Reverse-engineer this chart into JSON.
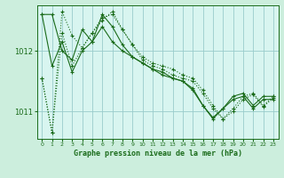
{
  "title": "Graphe pression niveau de la mer (hPa)",
  "background_color": "#cceedd",
  "plot_bg": "#d8f5f0",
  "grid_color": "#99cccc",
  "line_color": "#1a6b1a",
  "xlim": [
    -0.5,
    23.5
  ],
  "ylim": [
    1010.55,
    1012.75
  ],
  "yticks": [
    1011,
    1012
  ],
  "xticks": [
    0,
    1,
    2,
    3,
    4,
    5,
    6,
    7,
    8,
    9,
    10,
    11,
    12,
    13,
    14,
    15,
    16,
    17,
    18,
    19,
    20,
    21,
    22,
    23
  ],
  "series": [
    [
      1011.55,
      1010.65,
      1012.65,
      1012.25,
      1012.05,
      1012.3,
      1012.55,
      1012.6,
      1012.35,
      1012.1,
      1011.9,
      1011.8,
      1011.75,
      1011.7,
      1011.6,
      1011.55,
      1011.35,
      1011.1,
      1010.88,
      1011.05,
      1011.25,
      1011.3,
      1011.1,
      1011.25
    ],
    [
      1012.6,
      1012.6,
      1012.0,
      1011.85,
      1012.35,
      1012.15,
      1012.6,
      1012.4,
      1012.1,
      1011.9,
      1011.8,
      1011.7,
      1011.6,
      1011.55,
      1011.5,
      1011.38,
      1011.1,
      1010.9,
      1011.05,
      1011.25,
      1011.3,
      1011.1,
      1011.25,
      1011.25
    ],
    [
      1012.6,
      1011.75,
      1012.15,
      1011.65,
      1012.0,
      1012.15,
      1012.4,
      1012.15,
      1012.0,
      1011.9,
      1011.8,
      1011.7,
      1011.65,
      1011.55,
      1011.5,
      1011.35,
      1011.1,
      1010.88,
      1011.05,
      1011.2,
      1011.25,
      1011.05,
      1011.2,
      1011.2
    ],
    [
      1011.55,
      1010.65,
      1012.3,
      1011.75,
      1012.05,
      1012.3,
      1012.5,
      1012.65,
      1012.35,
      1012.1,
      1011.85,
      1011.75,
      1011.7,
      1011.6,
      1011.55,
      1011.5,
      1011.3,
      1011.05,
      1010.88,
      1011.0,
      1011.2,
      1011.28,
      1011.08,
      1011.22
    ]
  ]
}
